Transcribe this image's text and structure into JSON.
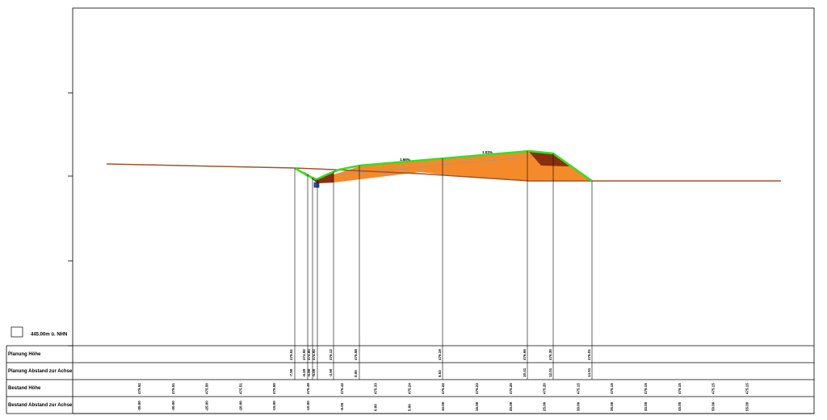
{
  "datum": {
    "label": "445.00m ü. NHN"
  },
  "slopes": [
    "1.66%",
    "1.03%"
  ],
  "table": {
    "rows": [
      {
        "label": "Planung Höhe",
        "values": [
          "475.51",
          "474.92",
          "474.85",
          "474.92",
          "475.12",
          "475.58",
          "476.19",
          "476.66",
          "476.30",
          "475.01"
        ]
      },
      {
        "label": "Planung Abstand zur Achse",
        "values": [
          "-7.50",
          "-6.20",
          "-5.80",
          "-5.00",
          "-3.50",
          "0.00",
          "5.53",
          "10.41",
          "12.01",
          "14.51"
        ]
      },
      {
        "label": "Bestand Höhe",
        "values": [
          "475.52",
          "475.51",
          "475.50",
          "475.51",
          "475.50",
          "475.49",
          "475.42",
          "475.33",
          "475.24",
          "475.22",
          "475.23",
          "475.25",
          "475.20",
          "475.15",
          "475.15",
          "475.15",
          "475.15",
          "475.15",
          "475.15"
        ]
      },
      {
        "label": "Bestand Abstand zur Achse",
        "values": [
          "-35.00",
          "-30.00",
          "-25.00",
          "-20.00",
          "-15.00",
          "-10.00",
          "-5.00",
          "0.00",
          "5.00",
          "10.00",
          "15.00",
          "20.00",
          "25.00",
          "30.00",
          "35.00",
          "40.00",
          "45.00",
          "50.00",
          "55.00"
        ]
      }
    ]
  }
}
